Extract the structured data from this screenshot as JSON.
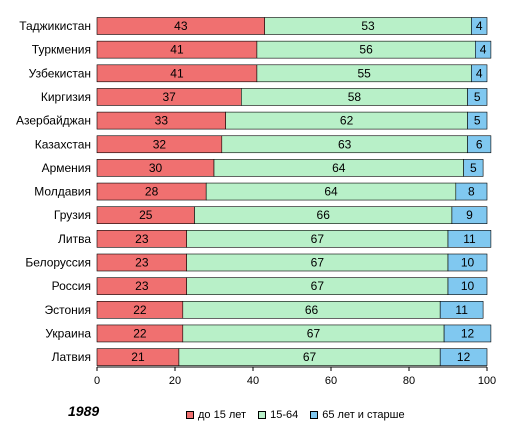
{
  "chart_data": {
    "type": "bar",
    "orientation": "horizontal",
    "stacked": true,
    "categories": [
      "Таджикистан",
      "Туркмения",
      "Узбекистан",
      "Киргизия",
      "Азербайджан",
      "Казахстан",
      "Армения",
      "Молдавия",
      "Грузия",
      "Литва",
      "Белоруссия",
      "Россия",
      "Эстония",
      "Украина",
      "Латвия"
    ],
    "series": [
      {
        "name": "до 15 лет",
        "color": "#f07070",
        "values": [
          43,
          41,
          41,
          37,
          33,
          32,
          30,
          28,
          25,
          23,
          23,
          23,
          22,
          22,
          21
        ]
      },
      {
        "name": "15-64",
        "color": "#b8f0c8",
        "values": [
          53,
          56,
          55,
          58,
          62,
          63,
          64,
          64,
          66,
          67,
          67,
          67,
          66,
          67,
          67
        ]
      },
      {
        "name": "65 лет и старше",
        "color": "#80c8f0",
        "values": [
          4,
          4,
          4,
          5,
          5,
          6,
          5,
          8,
          9,
          11,
          10,
          10,
          11,
          12,
          12
        ]
      }
    ],
    "xlim": [
      0,
      100
    ],
    "xticks": [
      0,
      20,
      40,
      60,
      80,
      100
    ],
    "grid": false,
    "legend": "bottom",
    "annotation": "1989"
  }
}
